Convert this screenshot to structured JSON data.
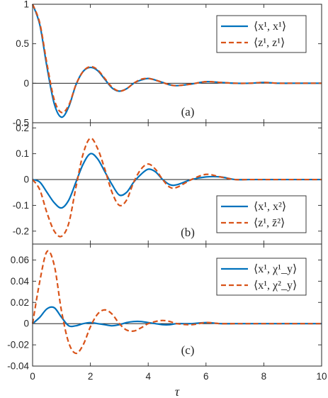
{
  "chart_data": [
    {
      "type": "line",
      "panel_label": "(a)",
      "xlim": [
        0,
        10
      ],
      "ylim": [
        -0.5,
        1
      ],
      "yticks": [
        "-0.5",
        "0",
        "0.5",
        "1"
      ],
      "xlabel": "",
      "legend_placement": "top-right",
      "series": [
        {
          "name": "⟨x¹, x¹⟩",
          "color": "#0072BD",
          "style": "solid",
          "x": [
            0,
            0.25,
            0.5,
            0.75,
            1.0,
            1.25,
            1.5,
            1.75,
            2.0,
            2.25,
            2.5,
            2.75,
            3.0,
            3.25,
            3.5,
            3.75,
            4.0,
            4.25,
            4.5,
            4.75,
            5.0,
            5.5,
            6.0,
            6.5,
            7.0,
            7.5,
            8.0,
            8.5,
            9.0,
            9.5,
            10.0
          ],
          "values": [
            1.0,
            0.74,
            0.2,
            -0.26,
            -0.43,
            -0.3,
            -0.02,
            0.15,
            0.2,
            0.16,
            0.05,
            -0.06,
            -0.1,
            -0.07,
            0.0,
            0.04,
            0.06,
            0.04,
            0.01,
            -0.02,
            -0.03,
            -0.01,
            0.02,
            0.01,
            0.0,
            0.0,
            0.01,
            0.0,
            0.0,
            0.0,
            0.0
          ]
        },
        {
          "name": "⟨z¹, z¹⟩",
          "color": "#D95319",
          "style": "dashed",
          "x": [
            0,
            0.25,
            0.5,
            0.75,
            1.0,
            1.25,
            1.5,
            1.75,
            2.0,
            2.25,
            2.5,
            2.75,
            3.0,
            3.25,
            3.5,
            3.75,
            4.0,
            4.25,
            4.5,
            4.75,
            5.0,
            5.5,
            6.0,
            6.5,
            7.0,
            7.5,
            8.0,
            8.5,
            9.0,
            9.5,
            10.0
          ],
          "values": [
            1.0,
            0.76,
            0.24,
            -0.21,
            -0.37,
            -0.28,
            -0.02,
            0.15,
            0.21,
            0.17,
            0.06,
            -0.05,
            -0.1,
            -0.07,
            0.0,
            0.05,
            0.06,
            0.04,
            0.01,
            -0.02,
            -0.03,
            -0.01,
            0.02,
            0.01,
            0.0,
            0.0,
            0.01,
            0.0,
            0.0,
            0.0,
            0.0
          ]
        }
      ]
    },
    {
      "type": "line",
      "panel_label": "(b)",
      "xlim": [
        0,
        10
      ],
      "ylim": [
        -0.25,
        0.22
      ],
      "yticks": [
        "-0.2",
        "-0.1",
        "0",
        "0.1",
        "0.2"
      ],
      "xlabel": "",
      "legend_placement": "bottom-right",
      "series": [
        {
          "name": "⟨x¹, x²⟩",
          "color": "#0072BD",
          "style": "solid",
          "x": [
            0,
            0.25,
            0.5,
            0.75,
            1.0,
            1.25,
            1.5,
            1.75,
            2.0,
            2.25,
            2.5,
            2.75,
            3.0,
            3.25,
            3.5,
            3.75,
            4.0,
            4.25,
            4.5,
            4.75,
            5.0,
            5.5,
            6.0,
            6.5,
            7.0,
            7.5,
            8.0,
            8.5,
            9.0,
            9.5,
            10.0
          ],
          "values": [
            0.0,
            -0.01,
            -0.05,
            -0.09,
            -0.11,
            -0.08,
            -0.01,
            0.06,
            0.1,
            0.08,
            0.03,
            -0.02,
            -0.06,
            -0.05,
            -0.01,
            0.02,
            0.04,
            0.03,
            0.0,
            -0.02,
            -0.02,
            0.0,
            0.01,
            0.01,
            0.0,
            0.0,
            0.0,
            0.0,
            0.0,
            0.0,
            0.0
          ]
        },
        {
          "name": "⟨z¹, z̄²⟩",
          "color": "#D95319",
          "style": "dashed",
          "x": [
            0,
            0.25,
            0.5,
            0.75,
            1.0,
            1.25,
            1.5,
            1.75,
            2.0,
            2.25,
            2.5,
            2.75,
            3.0,
            3.25,
            3.5,
            3.75,
            4.0,
            4.25,
            4.5,
            4.75,
            5.0,
            5.5,
            6.0,
            6.5,
            7.0,
            7.5,
            8.0,
            8.5,
            9.0,
            9.5,
            10.0
          ],
          "values": [
            0.0,
            -0.04,
            -0.13,
            -0.2,
            -0.22,
            -0.17,
            -0.03,
            0.1,
            0.16,
            0.12,
            0.04,
            -0.05,
            -0.1,
            -0.08,
            -0.01,
            0.04,
            0.06,
            0.04,
            0.0,
            -0.03,
            -0.03,
            0.0,
            0.02,
            0.01,
            0.0,
            0.0,
            0.0,
            0.0,
            0.0,
            0.0,
            0.0
          ]
        }
      ]
    },
    {
      "type": "line",
      "panel_label": "(c)",
      "xlim": [
        0,
        10
      ],
      "ylim": [
        -0.04,
        0.075
      ],
      "yticks": [
        "-0.04",
        "-0.02",
        "0",
        "0.02",
        "0.04",
        "0.06"
      ],
      "xticks": [
        "0",
        "2",
        "4",
        "6",
        "8",
        "10"
      ],
      "xlabel": "τ",
      "legend_placement": "top-right",
      "series": [
        {
          "name": "⟨x¹, χ¹_y⟩",
          "color": "#0072BD",
          "style": "solid",
          "x": [
            0,
            0.25,
            0.5,
            0.75,
            1.0,
            1.25,
            1.5,
            1.75,
            2.0,
            2.25,
            2.5,
            2.75,
            3.0,
            3.25,
            3.5,
            3.75,
            4.0,
            4.25,
            4.5,
            4.75,
            5.0,
            5.5,
            6.0,
            6.5,
            7.0,
            7.5,
            8.0,
            8.5,
            9.0,
            9.5,
            10.0
          ],
          "values": [
            0.0,
            0.006,
            0.014,
            0.015,
            0.006,
            -0.002,
            -0.002,
            0.0,
            0.001,
            0.0,
            -0.001,
            -0.002,
            -0.001,
            0.001,
            0.002,
            0.002,
            0.001,
            0.0,
            -0.001,
            -0.001,
            0.0,
            0.0,
            0.001,
            0.0,
            0.0,
            0.0,
            0.0,
            0.0,
            0.0,
            0.0,
            0.0
          ]
        },
        {
          "name": "⟨x¹, χ²_y⟩",
          "color": "#D95319",
          "style": "dashed",
          "x": [
            0,
            0.25,
            0.5,
            0.75,
            1.0,
            1.25,
            1.5,
            1.75,
            2.0,
            2.25,
            2.5,
            2.75,
            3.0,
            3.25,
            3.5,
            3.75,
            4.0,
            4.25,
            4.5,
            4.75,
            5.0,
            5.5,
            6.0,
            6.5,
            7.0,
            7.5,
            8.0,
            8.5,
            9.0,
            9.5,
            10.0
          ],
          "values": [
            0.0,
            0.04,
            0.068,
            0.055,
            0.012,
            -0.018,
            -0.028,
            -0.02,
            -0.003,
            0.009,
            0.013,
            0.009,
            0.0,
            -0.006,
            -0.007,
            -0.004,
            0.0,
            0.002,
            0.003,
            0.002,
            0.0,
            -0.001,
            0.001,
            0.0,
            0.0,
            0.0,
            0.0,
            0.0,
            0.0,
            0.0,
            0.0
          ]
        }
      ]
    }
  ]
}
